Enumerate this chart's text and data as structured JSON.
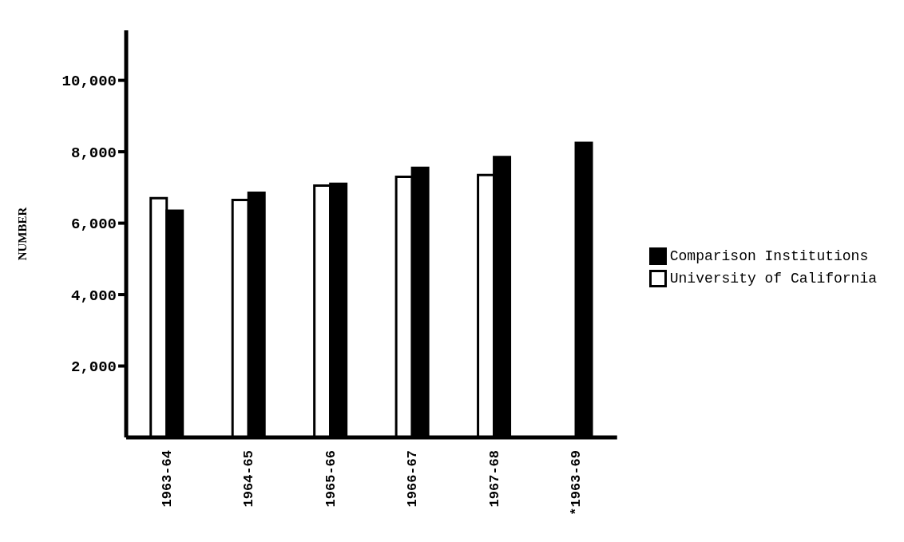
{
  "chart_data": {
    "type": "bar",
    "ylabel": "NUMBER",
    "categories": [
      "1963-64",
      "1964-65",
      "1965-66",
      "1966-67",
      "1967-68",
      "*1963-69"
    ],
    "series": [
      {
        "name": "University of California",
        "color": "#ffffff",
        "values": [
          6700,
          6650,
          7050,
          7300,
          7350,
          null
        ]
      },
      {
        "name": "Comparison Institutions",
        "color": "#000000",
        "values": [
          6350,
          6850,
          7100,
          7550,
          7850,
          8250
        ]
      }
    ],
    "ylim": [
      0,
      11400
    ],
    "yticks": [
      {
        "value": 2000,
        "label": "2,000"
      },
      {
        "value": 4000,
        "label": "4,000"
      },
      {
        "value": 6000,
        "label": "6,000"
      },
      {
        "value": 8000,
        "label": "8,000"
      },
      {
        "value": 10000,
        "label": "10,000"
      }
    ],
    "grid": false,
    "legend": "right"
  }
}
